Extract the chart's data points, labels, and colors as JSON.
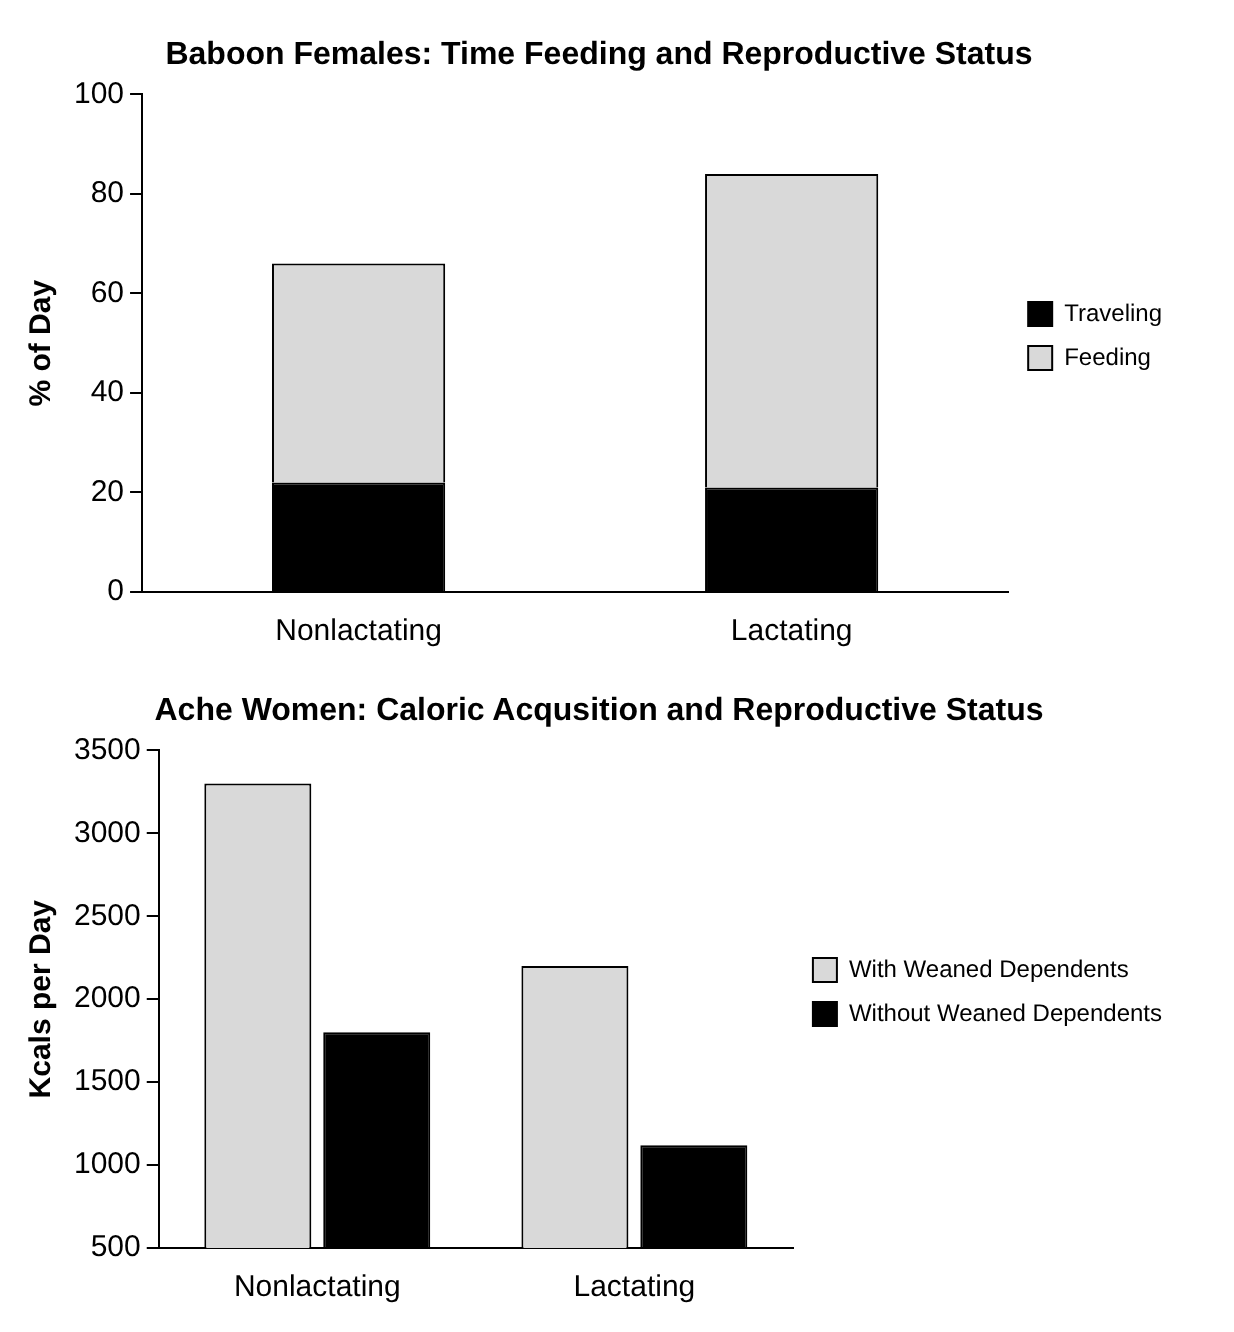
{
  "chart_data": [
    {
      "type": "bar",
      "title": "Baboon Females: Time Feeding and Reproductive Status",
      "ylabel": "% of Day",
      "categories": [
        "Nonlactating",
        "Lactating"
      ],
      "stacked": true,
      "series": [
        {
          "name": "Traveling",
          "color": "#000000",
          "values": [
            22,
            21
          ]
        },
        {
          "name": "Feeding",
          "color": "#d9d9d9",
          "values": [
            44,
            63
          ]
        }
      ],
      "ylim": [
        0,
        100
      ],
      "yticks": [
        0,
        20,
        40,
        60,
        80,
        100
      ],
      "grid": false,
      "legend": "right"
    },
    {
      "type": "bar",
      "title": "Ache Women: Caloric Acqusition and Reproductive Status",
      "ylabel": "Kcals per Day",
      "categories": [
        "Nonlactating",
        "Lactating"
      ],
      "series": [
        {
          "name": "With Weaned Dependents",
          "color": "#d9d9d9",
          "values": [
            3300,
            2200
          ]
        },
        {
          "name": "Without Weaned Dependents",
          "color": "#000000",
          "values": [
            1800,
            1120
          ]
        }
      ],
      "ylim": [
        500,
        3500
      ],
      "yticks": [
        500,
        1000,
        1500,
        2000,
        2500,
        3000,
        3500
      ],
      "grid": false,
      "legend": "right"
    }
  ]
}
